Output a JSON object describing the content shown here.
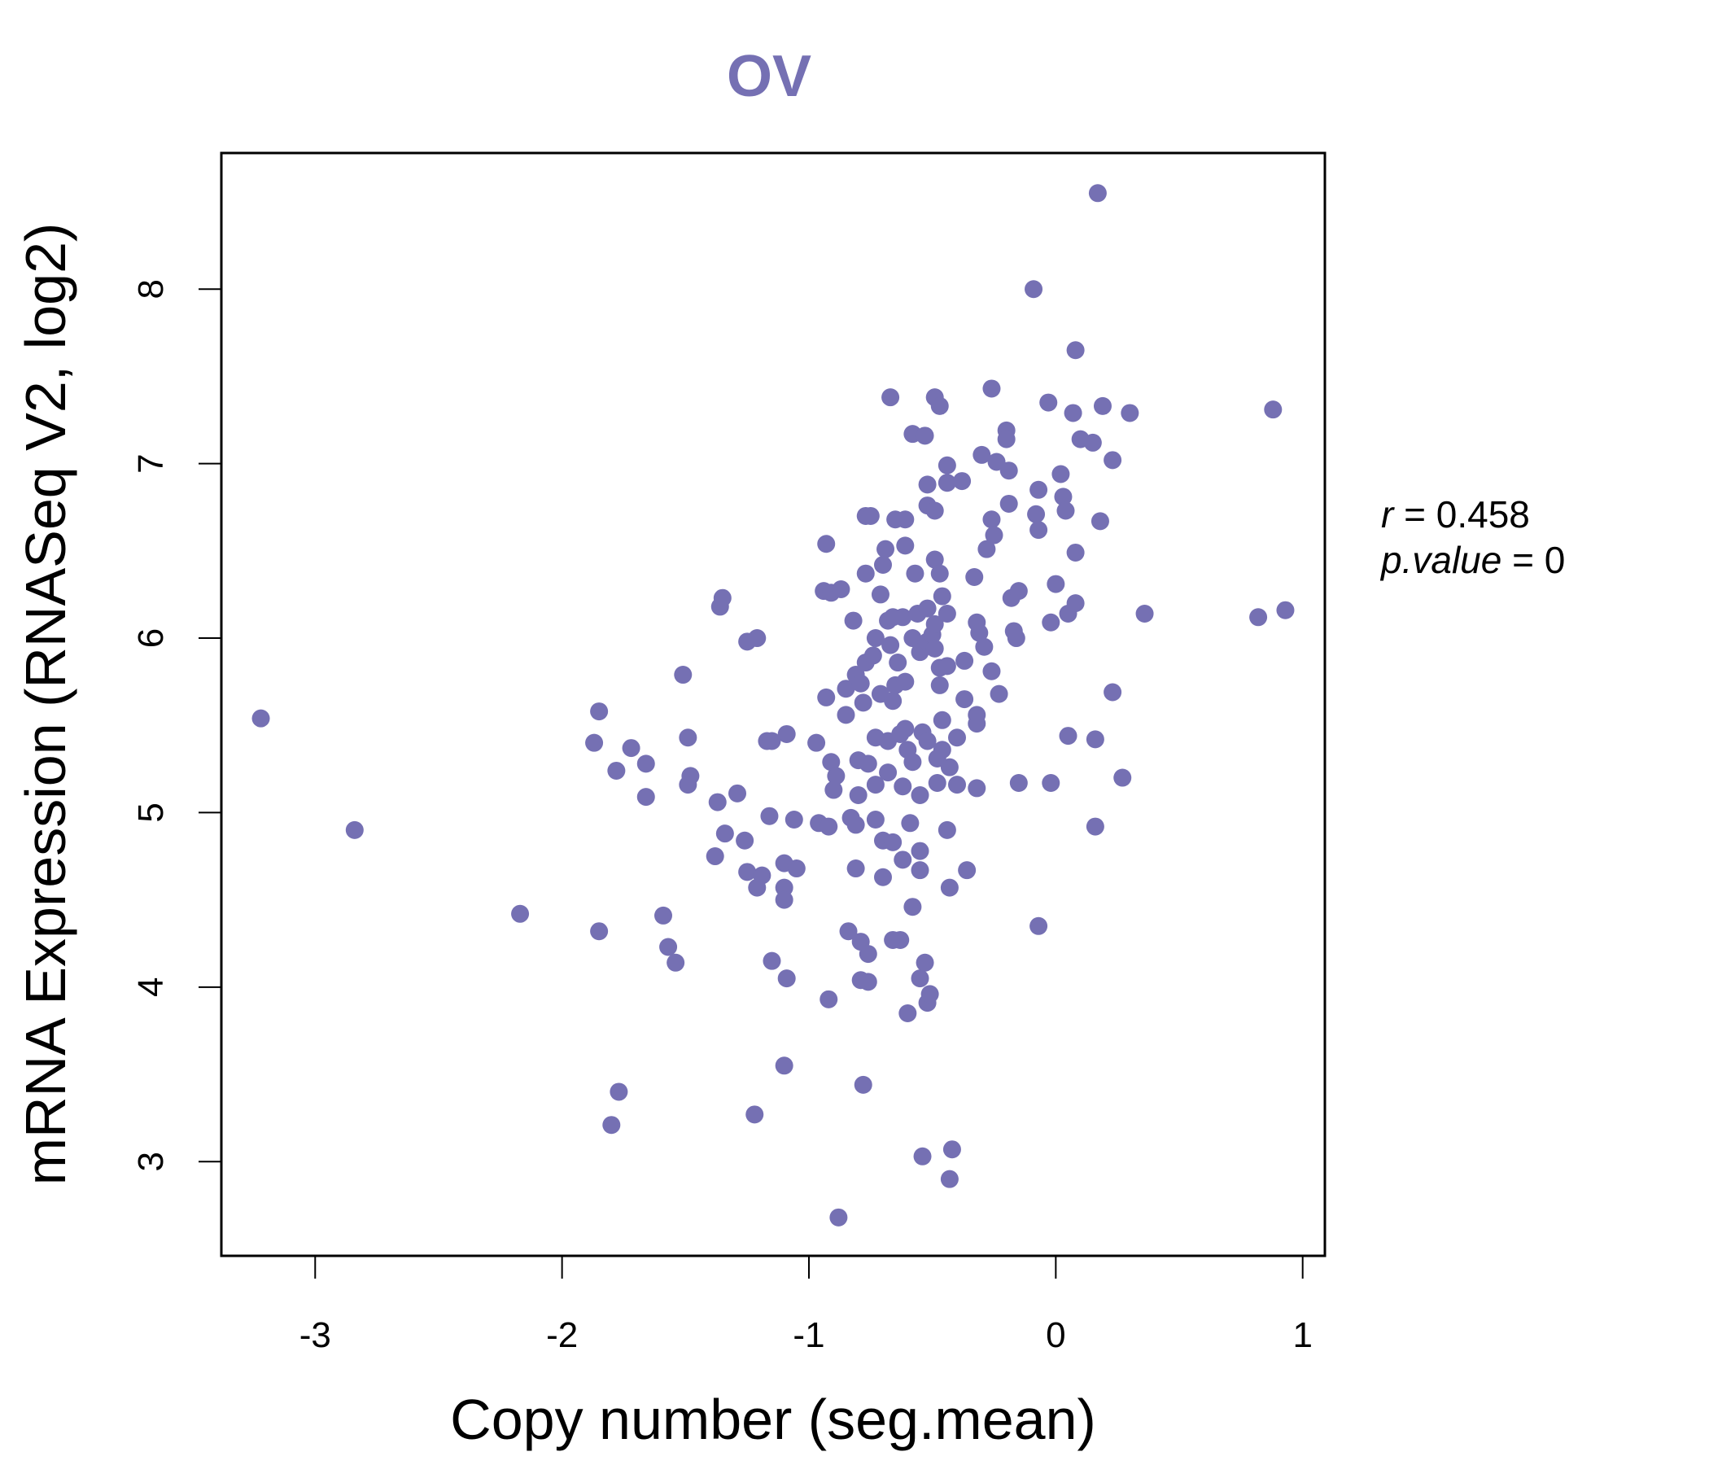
{
  "chart_data": {
    "type": "scatter",
    "title": "OV",
    "xlabel": "Copy number (seg.mean)",
    "ylabel": "mRNA Expression (RNASeq V2, log2)",
    "xlim": [
      -3.38,
      1.09
    ],
    "ylim": [
      2.46,
      8.78
    ],
    "xticks": [
      -3,
      -2,
      -1,
      0,
      1
    ],
    "yticks": [
      3,
      4,
      5,
      6,
      7,
      8
    ],
    "xtick_labels": [
      "-3",
      "-2",
      "-1",
      "0",
      "1"
    ],
    "ytick_labels": [
      "3",
      "4",
      "5",
      "6",
      "7",
      "8"
    ],
    "grid": false,
    "legend": "none",
    "point_color": "#7570b3",
    "annotation": {
      "r_symbol": "r",
      "r_value": "0.458",
      "p_symbol": "p.value",
      "p_value": "0"
    },
    "points": [
      [
        -3.22,
        5.54
      ],
      [
        -2.84,
        4.9
      ],
      [
        -2.17,
        4.42
      ],
      [
        -1.85,
        4.32
      ],
      [
        -1.85,
        5.58
      ],
      [
        -1.87,
        5.4
      ],
      [
        -1.78,
        5.24
      ],
      [
        -1.72,
        5.37
      ],
      [
        -1.66,
        5.28
      ],
      [
        -1.66,
        5.09
      ],
      [
        -1.77,
        3.4
      ],
      [
        -1.8,
        3.21
      ],
      [
        -1.59,
        4.41
      ],
      [
        -1.57,
        4.23
      ],
      [
        -1.54,
        4.14
      ],
      [
        -1.51,
        5.79
      ],
      [
        -1.49,
        5.43
      ],
      [
        -1.48,
        5.21
      ],
      [
        -1.49,
        5.16
      ],
      [
        -1.36,
        6.18
      ],
      [
        -1.35,
        6.23
      ],
      [
        -1.34,
        4.88
      ],
      [
        -1.37,
        5.06
      ],
      [
        -1.29,
        5.11
      ],
      [
        -1.38,
        4.75
      ],
      [
        -1.26,
        4.84
      ],
      [
        -1.25,
        4.66
      ],
      [
        -1.25,
        5.98
      ],
      [
        -1.21,
        6.0
      ],
      [
        -1.21,
        4.57
      ],
      [
        -1.19,
        4.64
      ],
      [
        -1.22,
        3.27
      ],
      [
        -1.17,
        5.41
      ],
      [
        -1.15,
        5.41
      ],
      [
        -1.16,
        4.98
      ],
      [
        -1.15,
        4.15
      ],
      [
        -1.09,
        5.45
      ],
      [
        -1.1,
        4.71
      ],
      [
        -1.1,
        4.57
      ],
      [
        -1.1,
        4.5
      ],
      [
        -1.09,
        4.05
      ],
      [
        -1.1,
        3.55
      ],
      [
        -1.06,
        4.96
      ],
      [
        -1.05,
        4.68
      ],
      [
        -0.97,
        5.4
      ],
      [
        -0.96,
        4.94
      ],
      [
        -0.93,
        6.54
      ],
      [
        -0.94,
        6.27
      ],
      [
        -0.91,
        6.26
      ],
      [
        -0.93,
        5.66
      ],
      [
        -0.91,
        5.29
      ],
      [
        -0.9,
        5.13
      ],
      [
        -0.89,
        5.21
      ],
      [
        -0.92,
        4.92
      ],
      [
        -0.92,
        3.93
      ],
      [
        -0.88,
        2.68
      ],
      [
        -0.87,
        6.28
      ],
      [
        -0.85,
        5.71
      ],
      [
        -0.85,
        5.56
      ],
      [
        -0.84,
        4.32
      ],
      [
        -0.83,
        4.97
      ],
      [
        -0.82,
        6.1
      ],
      [
        -0.81,
        5.79
      ],
      [
        -0.8,
        5.3
      ],
      [
        -0.81,
        4.93
      ],
      [
        -0.81,
        4.68
      ],
      [
        -0.79,
        4.26
      ],
      [
        -0.8,
        5.1
      ],
      [
        -0.79,
        4.04
      ],
      [
        -0.78,
        3.44
      ],
      [
        -0.77,
        6.7
      ],
      [
        -0.77,
        6.37
      ],
      [
        -0.78,
        5.63
      ],
      [
        -0.79,
        5.74
      ],
      [
        -0.77,
        5.86
      ],
      [
        -0.76,
        5.28
      ],
      [
        -0.76,
        4.19
      ],
      [
        -0.75,
        6.7
      ],
      [
        -0.74,
        5.9
      ],
      [
        -0.73,
        6.0
      ],
      [
        -0.73,
        5.43
      ],
      [
        -0.73,
        5.16
      ],
      [
        -0.73,
        4.96
      ],
      [
        -0.76,
        4.03
      ],
      [
        -0.7,
        6.42
      ],
      [
        -0.71,
        6.25
      ],
      [
        -0.69,
        6.51
      ],
      [
        -0.71,
        5.68
      ],
      [
        -0.7,
        4.84
      ],
      [
        -0.7,
        4.63
      ],
      [
        -0.68,
        6.1
      ],
      [
        -0.68,
        5.41
      ],
      [
        -0.68,
        5.23
      ],
      [
        -0.67,
        7.38
      ],
      [
        -0.67,
        5.96
      ],
      [
        -0.66,
        6.12
      ],
      [
        -0.66,
        5.64
      ],
      [
        -0.65,
        5.73
      ],
      [
        -0.66,
        4.83
      ],
      [
        -0.66,
        4.27
      ],
      [
        -0.65,
        6.68
      ],
      [
        -0.64,
        5.86
      ],
      [
        -0.63,
        5.45
      ],
      [
        -0.62,
        6.12
      ],
      [
        -0.62,
        5.15
      ],
      [
        -0.62,
        4.73
      ],
      [
        -0.63,
        4.27
      ],
      [
        -0.61,
        6.68
      ],
      [
        -0.61,
        6.53
      ],
      [
        -0.61,
        5.75
      ],
      [
        -0.61,
        5.48
      ],
      [
        -0.6,
        5.36
      ],
      [
        -0.59,
        4.94
      ],
      [
        -0.6,
        3.85
      ],
      [
        -0.58,
        7.17
      ],
      [
        -0.57,
        6.37
      ],
      [
        -0.58,
        6.0
      ],
      [
        -0.58,
        5.29
      ],
      [
        -0.58,
        4.46
      ],
      [
        -0.56,
        6.14
      ],
      [
        -0.55,
        5.92
      ],
      [
        -0.54,
        5.46
      ],
      [
        -0.55,
        5.1
      ],
      [
        -0.55,
        4.78
      ],
      [
        -0.55,
        4.67
      ],
      [
        -0.55,
        4.05
      ],
      [
        -0.54,
        3.03
      ],
      [
        -0.53,
        7.16
      ],
      [
        -0.52,
        6.88
      ],
      [
        -0.52,
        6.76
      ],
      [
        -0.52,
        6.17
      ],
      [
        -0.52,
        5.98
      ],
      [
        -0.52,
        5.41
      ],
      [
        -0.53,
        4.14
      ],
      [
        -0.52,
        3.91
      ],
      [
        -0.51,
        3.96
      ],
      [
        -0.5,
        6.02
      ],
      [
        -0.49,
        7.38
      ],
      [
        -0.49,
        6.73
      ],
      [
        -0.49,
        6.45
      ],
      [
        -0.49,
        6.08
      ],
      [
        -0.49,
        5.94
      ],
      [
        -0.48,
        5.31
      ],
      [
        -0.48,
        5.17
      ],
      [
        -0.47,
        7.33
      ],
      [
        -0.47,
        6.37
      ],
      [
        -0.46,
        6.24
      ],
      [
        -0.47,
        5.83
      ],
      [
        -0.47,
        5.73
      ],
      [
        -0.46,
        5.53
      ],
      [
        -0.46,
        5.36
      ],
      [
        -0.44,
        6.99
      ],
      [
        -0.44,
        6.89
      ],
      [
        -0.44,
        6.14
      ],
      [
        -0.44,
        5.84
      ],
      [
        -0.43,
        5.26
      ],
      [
        -0.44,
        4.9
      ],
      [
        -0.43,
        4.57
      ],
      [
        -0.43,
        2.9
      ],
      [
        -0.42,
        3.07
      ],
      [
        -0.4,
        5.43
      ],
      [
        -0.4,
        5.16
      ],
      [
        -0.38,
        6.9
      ],
      [
        -0.37,
        5.87
      ],
      [
        -0.36,
        4.67
      ],
      [
        -0.37,
        5.65
      ],
      [
        -0.33,
        6.35
      ],
      [
        -0.32,
        6.09
      ],
      [
        -0.32,
        5.56
      ],
      [
        -0.32,
        5.51
      ],
      [
        -0.32,
        5.14
      ],
      [
        -0.31,
        6.03
      ],
      [
        -0.3,
        7.05
      ],
      [
        -0.29,
        5.95
      ],
      [
        -0.28,
        6.51
      ],
      [
        -0.26,
        7.43
      ],
      [
        -0.26,
        6.68
      ],
      [
        -0.25,
        6.59
      ],
      [
        -0.26,
        5.81
      ],
      [
        -0.24,
        7.01
      ],
      [
        -0.23,
        5.68
      ],
      [
        -0.2,
        7.19
      ],
      [
        -0.2,
        7.14
      ],
      [
        -0.19,
        6.96
      ],
      [
        -0.19,
        6.77
      ],
      [
        -0.18,
        6.23
      ],
      [
        -0.17,
        6.04
      ],
      [
        -0.15,
        6.27
      ],
      [
        -0.16,
        6.0
      ],
      [
        -0.15,
        5.17
      ],
      [
        -0.09,
        8.0
      ],
      [
        -0.08,
        6.71
      ],
      [
        -0.07,
        6.62
      ],
      [
        -0.07,
        6.85
      ],
      [
        -0.07,
        4.35
      ],
      [
        -0.03,
        7.35
      ],
      [
        -0.02,
        6.09
      ],
      [
        -0.02,
        5.17
      ],
      [
        0.0,
        6.31
      ],
      [
        0.02,
        6.94
      ],
      [
        0.03,
        6.81
      ],
      [
        0.04,
        6.73
      ],
      [
        0.05,
        5.44
      ],
      [
        0.05,
        6.14
      ],
      [
        0.07,
        7.29
      ],
      [
        0.08,
        7.65
      ],
      [
        0.08,
        6.49
      ],
      [
        0.08,
        6.2
      ],
      [
        0.1,
        7.14
      ],
      [
        0.15,
        7.12
      ],
      [
        0.16,
        5.42
      ],
      [
        0.16,
        4.92
      ],
      [
        0.17,
        8.55
      ],
      [
        0.18,
        6.67
      ],
      [
        0.19,
        7.33
      ],
      [
        0.23,
        7.02
      ],
      [
        0.23,
        5.69
      ],
      [
        0.27,
        5.2
      ],
      [
        0.3,
        7.29
      ],
      [
        0.36,
        6.14
      ],
      [
        0.82,
        6.12
      ],
      [
        0.88,
        7.31
      ],
      [
        0.93,
        6.16
      ]
    ]
  }
}
